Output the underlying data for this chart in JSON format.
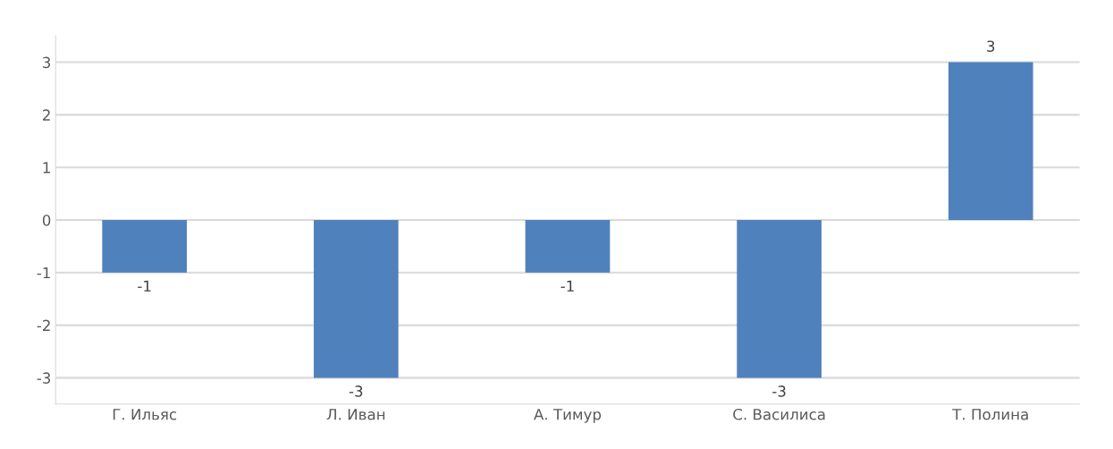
{
  "chart_data": {
    "type": "bar",
    "categories": [
      "Г. Ильяс",
      "Л. Иван",
      "А. Тимур",
      "С. Василиса",
      "Т. Полина"
    ],
    "values": [
      -1,
      -3,
      -1,
      -3,
      3
    ],
    "color": "#4f81bd",
    "ylim": [
      -3.5,
      3.5
    ],
    "yticks": [
      -3,
      -2,
      -1,
      0,
      1,
      2,
      3
    ],
    "grid": "y",
    "data_labels": true
  }
}
